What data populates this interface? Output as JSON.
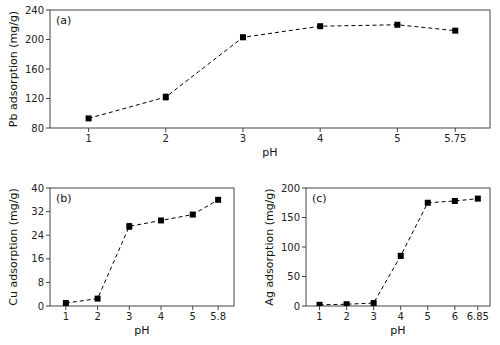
{
  "chart_data": [
    {
      "type": "line",
      "x": [
        1,
        2,
        3,
        4,
        5,
        5.75
      ],
      "values": [
        93,
        122,
        203,
        218,
        220,
        212
      ],
      "errors": [
        2,
        4,
        3,
        2,
        2,
        2
      ],
      "xlabel": "pH",
      "ylabel": "Pb adsorption (mg/g)",
      "xlim": [
        0.5,
        6.2
      ],
      "xticks": [
        1,
        2,
        3,
        4,
        5,
        5.75
      ],
      "ylim": [
        80,
        240
      ],
      "yticks": [
        80,
        120,
        160,
        200,
        240
      ],
      "annotation": "(a)",
      "color": "#000000",
      "marker": "square",
      "line_style": "dashed",
      "grid": false
    },
    {
      "type": "line",
      "x": [
        1,
        2,
        3,
        4,
        5,
        5.8
      ],
      "values": [
        1.0,
        2.5,
        27,
        29,
        31,
        36
      ],
      "errors": [
        0.3,
        0.4,
        1.0,
        0.5,
        0.5,
        0.5
      ],
      "xlabel": "pH",
      "ylabel": "Cu adsorption (mg/g)",
      "xlim": [
        0.5,
        6.3
      ],
      "xticks": [
        1,
        2,
        3,
        4,
        5,
        5.8
      ],
      "ylim": [
        0,
        40
      ],
      "yticks": [
        0,
        8,
        16,
        24,
        32,
        40
      ],
      "annotation": "(b)",
      "color": "#000000",
      "marker": "square",
      "line_style": "dashed",
      "grid": false
    },
    {
      "type": "line",
      "x": [
        1,
        2,
        3,
        4,
        5,
        6,
        6.85
      ],
      "values": [
        2,
        3,
        5,
        85,
        175,
        178,
        182
      ],
      "errors": [
        0.5,
        0.5,
        1,
        4,
        3,
        3,
        3
      ],
      "xlabel": "pH",
      "ylabel": "Ag adsorption (mg/g)",
      "xlim": [
        0.5,
        7.3
      ],
      "xticks": [
        1,
        2,
        3,
        4,
        5,
        6,
        6.85
      ],
      "ylim": [
        0,
        200
      ],
      "yticks": [
        0,
        50,
        100,
        150,
        200
      ],
      "annotation": "(c)",
      "color": "#000000",
      "marker": "square",
      "line_style": "dashed",
      "grid": false
    }
  ]
}
